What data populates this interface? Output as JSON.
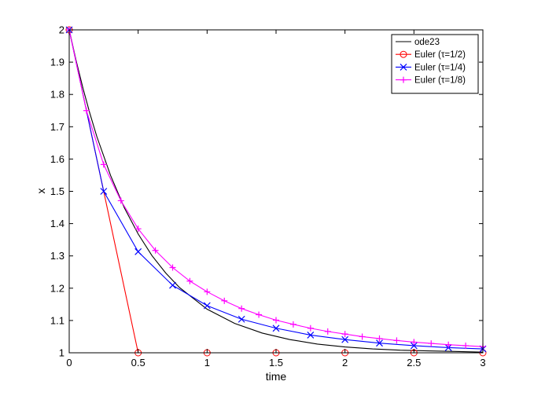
{
  "chart_data": {
    "type": "line",
    "xlabel": "time",
    "ylabel": "x",
    "xlim": [
      0,
      3
    ],
    "ylim": [
      1,
      2
    ],
    "xticks": [
      0,
      0.5,
      1,
      1.5,
      2,
      2.5,
      3
    ],
    "xtick_labels": [
      "0",
      "0.5",
      "1",
      "1.5",
      "2",
      "2.5",
      "3"
    ],
    "yticks": [
      1,
      1.1,
      1.2,
      1.3,
      1.4,
      1.5,
      1.6,
      1.7,
      1.8,
      1.9,
      2
    ],
    "ytick_labels": [
      "1",
      "1.1",
      "1.2",
      "1.3",
      "1.4",
      "1.5",
      "1.6",
      "1.7",
      "1.8",
      "1.9",
      "2"
    ],
    "grid": false,
    "legend_position": "top-right",
    "series": [
      {
        "name": "ode23",
        "color": "#000000",
        "marker": "none",
        "x": [
          0,
          0.05,
          0.1,
          0.15,
          0.2,
          0.3,
          0.4,
          0.5,
          0.6,
          0.7,
          0.8,
          1.0,
          1.2,
          1.4,
          1.6,
          1.8,
          2.0,
          2.2,
          2.4,
          2.6,
          2.8,
          3.0
        ],
        "y": [
          2,
          1.905,
          1.819,
          1.741,
          1.67,
          1.549,
          1.449,
          1.368,
          1.301,
          1.247,
          1.202,
          1.135,
          1.091,
          1.061,
          1.041,
          1.027,
          1.018,
          1.012,
          1.008,
          1.006,
          1.004,
          1.002
        ]
      },
      {
        "name": "Euler  (τ=1/2)",
        "color": "#ff0000",
        "marker": "circle",
        "x": [
          0,
          0.5,
          1,
          1.5,
          2,
          2.5,
          3
        ],
        "y": [
          2,
          1,
          1,
          1,
          1,
          1,
          1
        ]
      },
      {
        "name": "Euler  (τ=1/4)",
        "color": "#0000ff",
        "marker": "x",
        "x": [
          0,
          0.25,
          0.5,
          0.75,
          1,
          1.25,
          1.5,
          1.75,
          2,
          2.25,
          2.5,
          2.75,
          3
        ],
        "y": [
          2,
          1.5,
          1.313,
          1.209,
          1.146,
          1.104,
          1.076,
          1.055,
          1.041,
          1.03,
          1.022,
          1.016,
          1.012
        ]
      },
      {
        "name": "Euler  (τ=1/8)",
        "color": "#ff00ff",
        "marker": "plus",
        "x": [
          0,
          0.125,
          0.25,
          0.375,
          0.5,
          0.625,
          0.75,
          0.875,
          1,
          1.125,
          1.25,
          1.375,
          1.5,
          1.625,
          1.75,
          1.875,
          2,
          2.125,
          2.25,
          2.375,
          2.5,
          2.625,
          2.75,
          2.875,
          3
        ],
        "y": [
          2,
          1.75,
          1.583,
          1.471,
          1.384,
          1.317,
          1.264,
          1.222,
          1.189,
          1.161,
          1.137,
          1.118,
          1.101,
          1.088,
          1.076,
          1.066,
          1.058,
          1.05,
          1.044,
          1.038,
          1.033,
          1.029,
          1.025,
          1.022,
          1.019
        ]
      }
    ]
  }
}
